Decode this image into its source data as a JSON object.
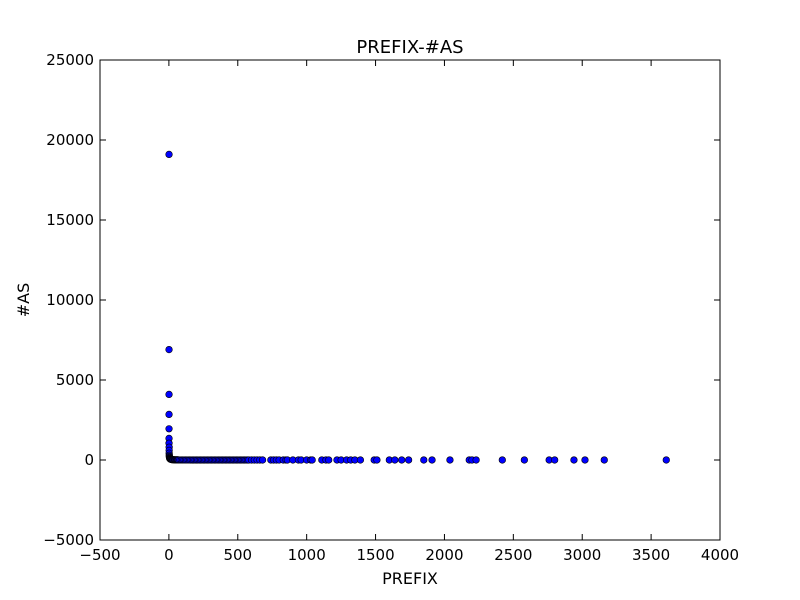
{
  "chart_data": {
    "type": "scatter",
    "title": "PREFIX-#AS",
    "xlabel": "PREFIX",
    "ylabel": "#AS",
    "xlim": [
      -500,
      4000
    ],
    "ylim": [
      -5000,
      25000
    ],
    "xticks": [
      "−500",
      "0",
      "500",
      "1000",
      "1500",
      "2000",
      "2500",
      "3000",
      "3500",
      "4000"
    ],
    "yticks": [
      "−5000",
      "0",
      "5000",
      "10000",
      "15000",
      "20000",
      "25000"
    ],
    "grid": false,
    "marker_color": "#0000ff",
    "x": [
      1,
      1,
      1,
      1,
      1,
      1,
      1,
      2,
      2,
      2,
      3,
      3,
      4,
      5,
      6,
      8,
      10,
      12,
      15,
      18,
      22,
      26,
      30,
      35,
      40,
      45,
      50,
      55,
      60,
      65,
      70,
      80,
      90,
      100,
      110,
      120,
      130,
      140,
      150,
      160,
      170,
      180,
      190,
      200,
      210,
      220,
      230,
      240,
      250,
      260,
      270,
      280,
      290,
      300,
      310,
      320,
      330,
      340,
      350,
      360,
      370,
      380,
      390,
      400,
      410,
      420,
      430,
      440,
      450,
      460,
      470,
      480,
      490,
      500,
      510,
      520,
      530,
      540,
      550,
      560,
      570,
      580,
      600,
      620,
      640,
      660,
      680,
      740,
      760,
      780,
      800,
      830,
      850,
      860,
      900,
      940,
      960,
      1000,
      1030,
      1040,
      1110,
      1140,
      1160,
      1220,
      1250,
      1290,
      1320,
      1350,
      1390,
      1490,
      1510,
      1600,
      1640,
      1690,
      1740,
      1850,
      1910,
      2040,
      2180,
      2200,
      2230,
      2420,
      2580,
      2760,
      2800,
      2940,
      3020,
      3160,
      3610
    ],
    "y": [
      19100,
      6900,
      4100,
      2850,
      1950,
      1350,
      1050,
      800,
      600,
      420,
      300,
      230,
      170,
      130,
      100,
      80,
      60,
      50,
      40,
      30,
      25,
      20,
      18,
      15,
      12,
      10,
      9,
      8,
      7,
      6,
      5,
      5,
      4,
      4,
      4,
      3,
      3,
      3,
      3,
      2,
      2,
      2,
      2,
      2,
      2,
      2,
      2,
      2,
      2,
      2,
      2,
      2,
      2,
      1,
      1,
      1,
      1,
      1,
      1,
      1,
      1,
      1,
      1,
      1,
      1,
      1,
      1,
      1,
      1,
      1,
      1,
      1,
      1,
      1,
      1,
      1,
      1,
      1,
      1,
      1,
      1,
      1,
      1,
      1,
      1,
      1,
      1,
      1,
      1,
      1,
      1,
      1,
      1,
      1,
      1,
      1,
      1,
      1,
      1,
      1,
      1,
      1,
      1,
      1,
      1,
      1,
      1,
      1,
      1,
      1,
      1,
      1,
      1,
      1,
      1,
      1,
      1,
      1,
      1,
      1,
      1,
      1,
      1,
      1,
      1,
      1,
      1,
      1,
      1
    ]
  }
}
